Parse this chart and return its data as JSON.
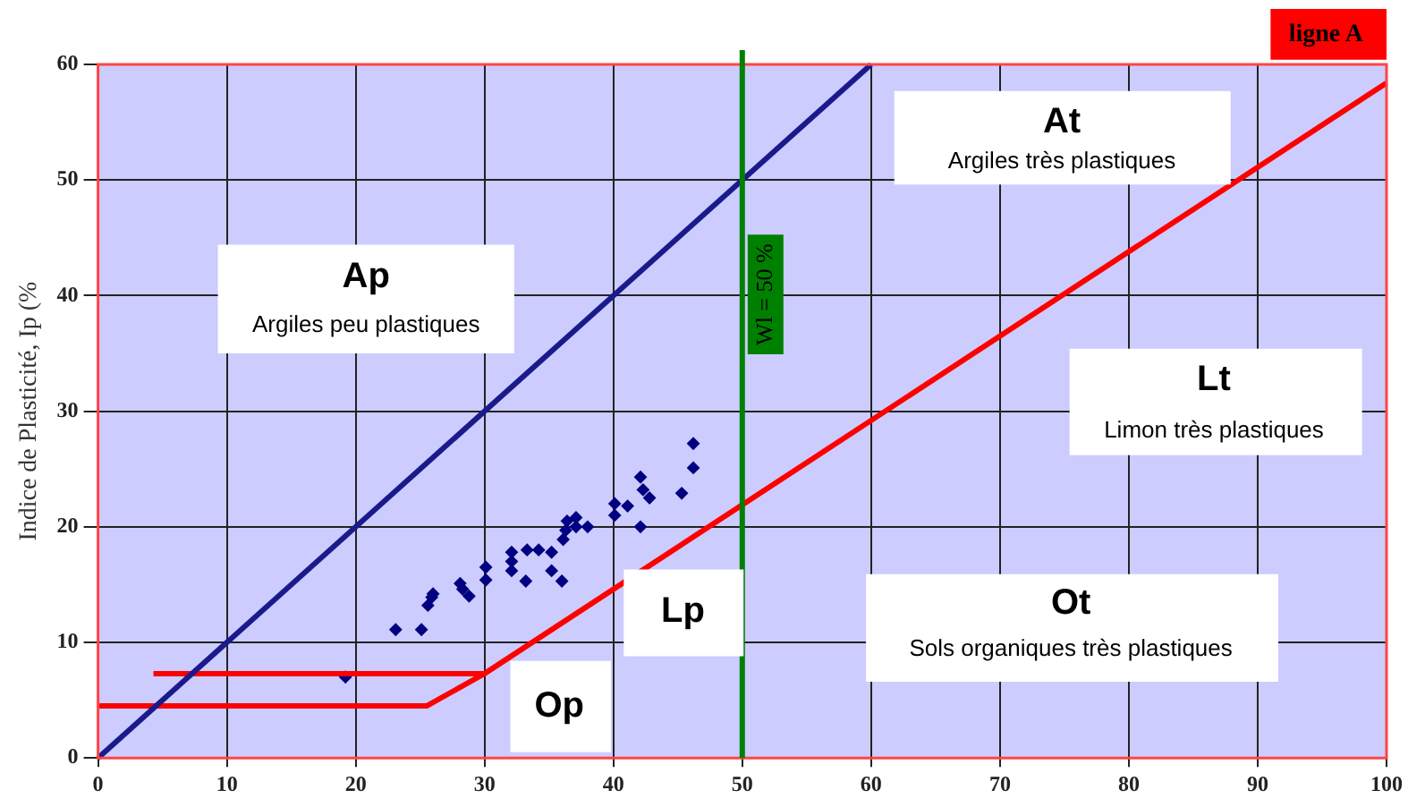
{
  "chart_data": {
    "type": "scatter",
    "ylabel": "Indice de Plasticité, Ip (%",
    "xlim": [
      0,
      100
    ],
    "ylim": [
      0,
      60
    ],
    "xticks": [
      0,
      10,
      20,
      30,
      40,
      50,
      60,
      70,
      80,
      90,
      100
    ],
    "yticks": [
      0,
      10,
      20,
      30,
      40,
      50,
      60
    ],
    "grid": true,
    "legend": false,
    "series": [
      {
        "type": "line",
        "color": "#1a1a8c",
        "x": [
          0,
          60
        ],
        "values": [
          0,
          60
        ]
      },
      {
        "type": "line",
        "color": "#ff0000",
        "x": [
          0,
          25.5,
          30,
          100
        ],
        "values": [
          4.5,
          4.5,
          7.3,
          58.4
        ]
      },
      {
        "type": "line",
        "color": "#ff0000",
        "x": [
          4.3,
          30
        ],
        "values": [
          7.3,
          7.3
        ]
      },
      {
        "type": "scatter",
        "marker": "diamond",
        "color": "#000080",
        "x": [
          19.2,
          23.1,
          25.1,
          25.6,
          25.9,
          26.0,
          28.1,
          28.3,
          28.8,
          30.1,
          30.1,
          32.1,
          32.1,
          32.1,
          33.2,
          33.3,
          34.2,
          35.2,
          35.2,
          36.0,
          36.1,
          36.3,
          36.4,
          37.1,
          37.1,
          38.0,
          40.1,
          40.1,
          41.1,
          42.1,
          42.1,
          42.3,
          42.8,
          45.3,
          46.2,
          46.2
        ],
        "values": [
          7.0,
          11.1,
          11.1,
          13.2,
          13.9,
          14.2,
          15.1,
          14.6,
          14.0,
          16.5,
          15.4,
          17.8,
          17.0,
          16.2,
          15.3,
          18.0,
          18.0,
          17.8,
          16.2,
          15.3,
          18.9,
          19.7,
          20.5,
          20.8,
          20.0,
          20.0,
          22.0,
          21.0,
          21.8,
          24.3,
          20.0,
          23.2,
          22.5,
          22.9,
          27.2,
          25.1
        ]
      }
    ],
    "ref_lines": [
      {
        "axis": "x",
        "value": 50,
        "label": "Wl = 50 %",
        "color": "#008000"
      }
    ],
    "annotations": [
      "Ap",
      "Argiles peu plastiques",
      "At",
      "Argiles très plastiques",
      "Lt",
      "Limon très plastiques",
      "Ot",
      "Sols organiques très plastiques",
      "Lp",
      "Op",
      "ligne A"
    ]
  }
}
